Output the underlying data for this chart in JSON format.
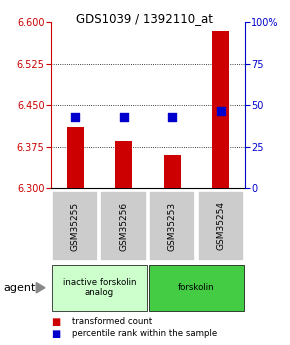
{
  "title": "GDS1039 / 1392110_at",
  "samples": [
    "GSM35255",
    "GSM35256",
    "GSM35253",
    "GSM35254"
  ],
  "bar_base": 6.3,
  "bar_tops": [
    6.41,
    6.385,
    6.36,
    6.585
  ],
  "percentile_values": [
    6.428,
    6.428,
    6.428,
    6.44
  ],
  "ylim_left": [
    6.3,
    6.6
  ],
  "ylim_right": [
    0,
    100
  ],
  "yticks_left": [
    6.3,
    6.375,
    6.45,
    6.525,
    6.6
  ],
  "yticks_right": [
    0,
    25,
    50,
    75,
    100
  ],
  "bar_color": "#cc0000",
  "dot_color": "#0000cc",
  "groups": [
    {
      "label": "inactive forskolin\nanalog",
      "samples": [
        0,
        1
      ],
      "color": "#ccffcc"
    },
    {
      "label": "forskolin",
      "samples": [
        2,
        3
      ],
      "color": "#44cc44"
    }
  ],
  "agent_label": "agent",
  "legend_bar_label": "transformed count",
  "legend_dot_label": "percentile rank within the sample",
  "bar_width": 0.35,
  "dot_size": 40,
  "background_color": "#ffffff"
}
